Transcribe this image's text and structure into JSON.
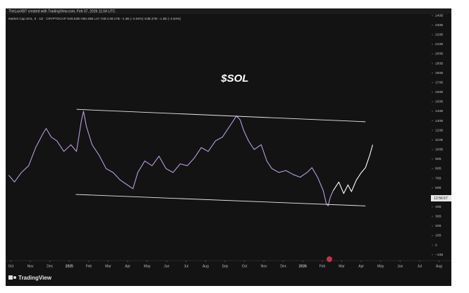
{
  "chart_data": {
    "type": "line",
    "attribution": "TheLuxXBT created with TradingView.com, Feb 07, 2026 11:04 UTC",
    "symbol_info": "Market Cap SOL, 5 · 1D · CRYPTOCAP  O49.52B H50.46B L47.72B C48.17B −1.3B (−2.64%) Vol8.27B −1.3B (−2.64%)",
    "title": "$SOL",
    "price_label": "12:56:57",
    "brand": "TradingView",
    "xlim": [
      -0.2,
      22.2
    ],
    "ylim": [
      -14.7,
      246
    ],
    "xticks": [
      {
        "value": 0,
        "label": "Oct"
      },
      {
        "value": 1,
        "label": "Nov"
      },
      {
        "value": 2,
        "label": "Dec"
      },
      {
        "value": 3,
        "label": "2025"
      },
      {
        "value": 4,
        "label": "Feb"
      },
      {
        "value": 5,
        "label": "Mar"
      },
      {
        "value": 6,
        "label": "Apr"
      },
      {
        "value": 7,
        "label": "May"
      },
      {
        "value": 8,
        "label": "Jun"
      },
      {
        "value": 9,
        "label": "Jul"
      },
      {
        "value": 10,
        "label": "Aug"
      },
      {
        "value": 11,
        "label": "Sep"
      },
      {
        "value": 12,
        "label": "Oct"
      },
      {
        "value": 13,
        "label": "Nov"
      },
      {
        "value": 14,
        "label": "Dec"
      },
      {
        "value": 15,
        "label": "2026"
      },
      {
        "value": 16,
        "label": "Feb"
      },
      {
        "value": 17,
        "label": "Mar"
      },
      {
        "value": 18,
        "label": "Apr"
      },
      {
        "value": 19,
        "label": "May"
      },
      {
        "value": 20,
        "label": "Jun"
      },
      {
        "value": 21,
        "label": "Jul"
      },
      {
        "value": 22,
        "label": "Aug"
      }
    ],
    "yticks": [
      {
        "value": 240,
        "label": "240B"
      },
      {
        "value": 230,
        "label": "230B"
      },
      {
        "value": 220,
        "label": "220B"
      },
      {
        "value": 210,
        "label": "210B"
      },
      {
        "value": 200,
        "label": "200B"
      },
      {
        "value": 190,
        "label": "190B"
      },
      {
        "value": 180,
        "label": "180B"
      },
      {
        "value": 170,
        "label": "170B"
      },
      {
        "value": 160,
        "label": "160B"
      },
      {
        "value": 150,
        "label": "150B"
      },
      {
        "value": 140,
        "label": "140B"
      },
      {
        "value": 130,
        "label": "130B"
      },
      {
        "value": 120,
        "label": "120B"
      },
      {
        "value": 110,
        "label": "110B"
      },
      {
        "value": 100,
        "label": "100B"
      },
      {
        "value": 90,
        "label": "90B"
      },
      {
        "value": 80,
        "label": "80B"
      },
      {
        "value": 70,
        "label": "70B"
      },
      {
        "value": 60,
        "label": "60B"
      },
      {
        "value": 40,
        "label": "40B"
      },
      {
        "value": 30,
        "label": "30B"
      },
      {
        "value": 20,
        "label": "20B"
      },
      {
        "value": 10,
        "label": "10B"
      },
      0,
      {
        "value": -10,
        "label": "−10B"
      }
    ],
    "series": [
      {
        "color": "#b79be0",
        "x": [
          -0.11,
          0.18,
          0.54,
          0.91,
          1.27,
          1.63,
          1.81,
          2.07,
          2.36,
          2.72,
          3.08,
          3.37,
          3.62,
          3.73,
          3.88,
          4.17,
          4.53,
          4.89,
          5.25,
          5.62,
          5.98,
          6.27,
          6.52,
          6.88,
          7.25,
          7.61,
          7.97,
          8.33,
          8.7,
          9.06,
          9.42,
          9.78,
          10.14,
          10.51,
          10.87,
          11.23,
          11.59,
          11.78,
          11.96,
          12.21,
          12.5,
          12.86,
          13.15,
          13.41,
          13.77,
          14.13,
          14.49,
          14.86,
          15.22,
          15.47,
          15.76,
          16.05,
          16.2,
          16.3,
          16.41,
          16.56
        ],
        "values": [
          73,
          66,
          76,
          83,
          102,
          116,
          122,
          113,
          109,
          98,
          105,
          98,
          130,
          140,
          124,
          105,
          94,
          80,
          76,
          68,
          63,
          59,
          76,
          88,
          83,
          93,
          80,
          76,
          85,
          83,
          91,
          102,
          98,
          109,
          113,
          124,
          135,
          131,
          120,
          109,
          100,
          105,
          88,
          80,
          76,
          78,
          74,
          71,
          76,
          81,
          71,
          57,
          44,
          41,
          50,
          57
        ]
      },
      {
        "color": "#ffffff",
        "x": [
          16.56,
          16.85,
          17.1,
          17.32,
          17.5,
          17.75,
          18.01,
          18.22,
          18.44,
          18.59
        ],
        "values": [
          57,
          66,
          54,
          63,
          56,
          68,
          76,
          81,
          94,
          105
        ]
      },
      {
        "color": "#e8e8e8",
        "x": [
          3.37,
          18.22
        ],
        "values": [
          142,
          129
        ]
      },
      {
        "color": "#e8e8e8",
        "x": [
          3.33,
          18.22
        ],
        "values": [
          53,
          41
        ]
      }
    ]
  }
}
